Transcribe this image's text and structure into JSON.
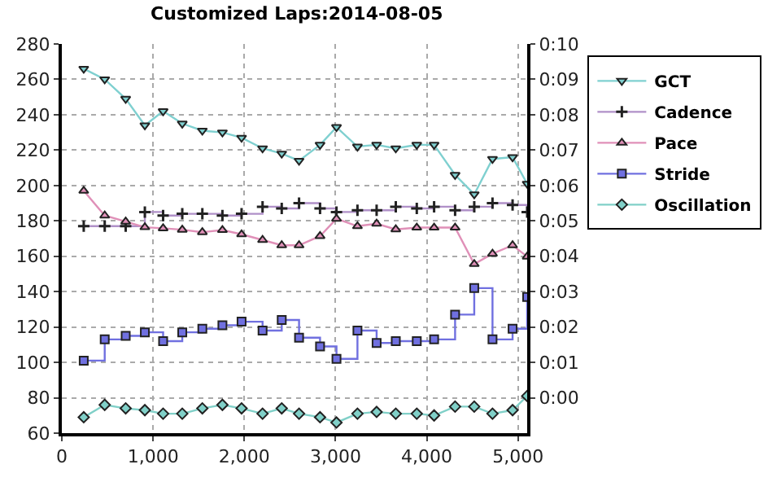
{
  "chart_data": {
    "type": "line",
    "title": "Customized Laps:2014-08-05",
    "x": [
      240,
      470,
      700,
      910,
      1110,
      1320,
      1540,
      1760,
      1970,
      2200,
      2410,
      2600,
      2830,
      3010,
      3240,
      3450,
      3660,
      3890,
      4080,
      4310,
      4520,
      4720,
      4940,
      5100
    ],
    "series": [
      {
        "name": "GCT",
        "color": "#7fd0d0",
        "marker": "triangle-down",
        "values": [
          266,
          260,
          249,
          234,
          242,
          235,
          231,
          230,
          227,
          221,
          218,
          214,
          223,
          233,
          222,
          223,
          221,
          223,
          223,
          206,
          195,
          215,
          216,
          201
        ]
      },
      {
        "name": "Cadence",
        "type": "step",
        "color": "#b090c8",
        "marker": "cross",
        "values": [
          177,
          177,
          177,
          185,
          183,
          184,
          184,
          183,
          184,
          188,
          187,
          190,
          187,
          185,
          186,
          186,
          188,
          187,
          188,
          186,
          188,
          190,
          189,
          185
        ]
      },
      {
        "name": "Pace",
        "axis": "y2",
        "color": "#e090b8",
        "marker": "triangle",
        "values": [
          5.85,
          5.15,
          4.98,
          4.82,
          4.79,
          4.75,
          4.68,
          4.74,
          4.62,
          4.46,
          4.31,
          4.31,
          4.57,
          5.06,
          4.85,
          4.92,
          4.76,
          4.81,
          4.81,
          4.81,
          3.78,
          4.07,
          4.31,
          3.99
        ]
      },
      {
        "name": "Stride",
        "type": "step",
        "color": "#7070e0",
        "marker": "square",
        "values": [
          101,
          113,
          115,
          117,
          112,
          117,
          119,
          121,
          123,
          118,
          124,
          114,
          109,
          102,
          118,
          111,
          112,
          112,
          113,
          127,
          142,
          113,
          119,
          137
        ]
      },
      {
        "name": "Oscillation",
        "color": "#80d0c8",
        "marker": "diamond",
        "values": [
          69,
          76,
          74,
          73,
          71,
          71,
          74,
          76,
          74,
          71,
          74,
          71,
          69,
          66,
          71,
          72,
          71,
          71,
          70,
          75,
          75,
          71,
          73,
          81
        ]
      }
    ],
    "xlim": [
      0,
      5100
    ],
    "xticks": [
      0,
      {
        "value": 1000,
        "label": "1,000"
      },
      {
        "value": 2000,
        "label": "2,000"
      },
      {
        "value": 3000,
        "label": "3,000"
      },
      {
        "value": 4000,
        "label": "4,000"
      },
      {
        "value": 5000,
        "label": "5,000"
      }
    ],
    "ylim": [
      60,
      280
    ],
    "yticks": [
      60,
      80,
      100,
      120,
      140,
      160,
      180,
      200,
      220,
      240,
      260,
      280
    ],
    "y2lim": [
      -1,
      10
    ],
    "y2ticks": [
      {
        "value": 0,
        "label": "0:00"
      },
      {
        "value": 1,
        "label": "0:01"
      },
      {
        "value": 2,
        "label": "0:02"
      },
      {
        "value": 3,
        "label": "0:03"
      },
      {
        "value": 4,
        "label": "0:04"
      },
      {
        "value": 5,
        "label": "0:05"
      },
      {
        "value": 6,
        "label": "0:06"
      },
      {
        "value": 7,
        "label": "0:07"
      },
      {
        "value": 8,
        "label": "0:08"
      },
      {
        "value": 9,
        "label": "0:09"
      },
      {
        "value": 10,
        "label": "0:10"
      }
    ],
    "grid": true,
    "legend": "top right",
    "line_style": "solid"
  }
}
